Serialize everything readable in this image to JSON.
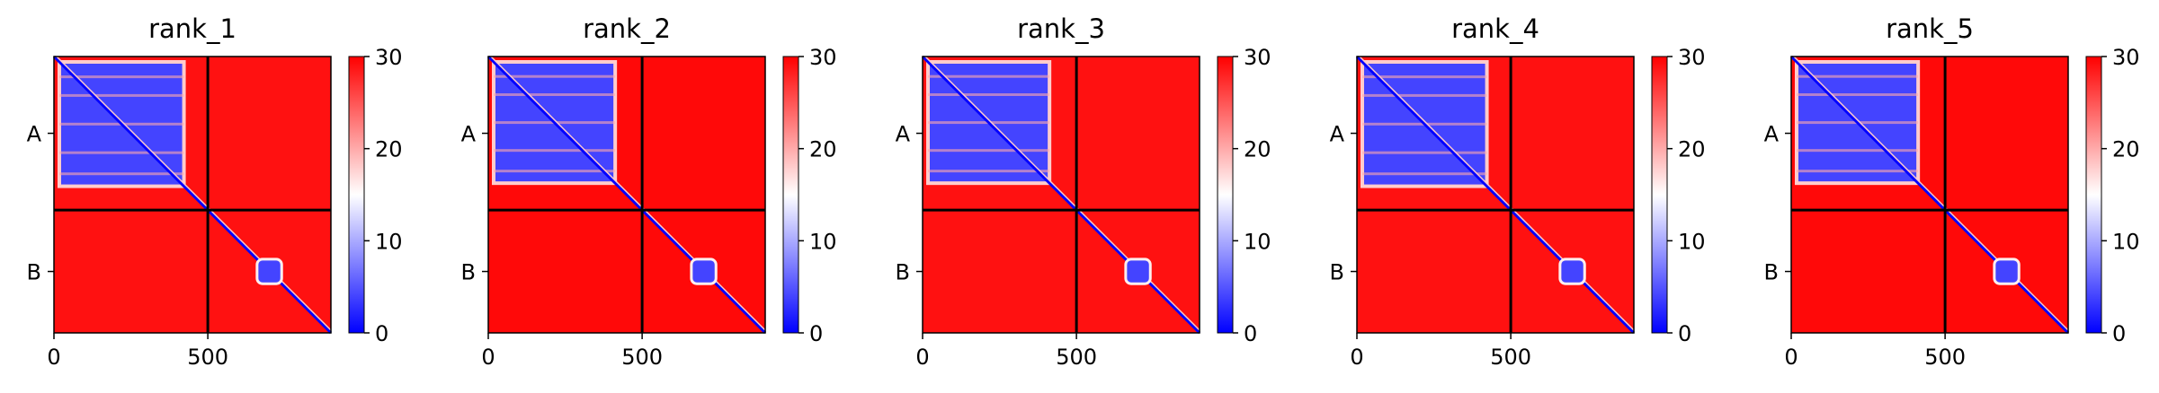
{
  "chart_data": [
    {
      "type": "heatmap",
      "title": "rank_1",
      "chains": [
        "A",
        "B"
      ],
      "chain_lengths": [
        500,
        400
      ],
      "xticks": [
        0,
        500
      ],
      "xtick_labels": [
        "0",
        "500"
      ],
      "ytick_labels": [
        "A",
        "B"
      ],
      "colorbar": {
        "min": 0,
        "max": 30,
        "ticks": [
          0,
          10,
          20,
          30
        ],
        "tick_labels": [
          "0",
          "10",
          "20",
          "30"
        ],
        "cmap": [
          "#0000ff",
          "#ffffff",
          "#ff0000"
        ]
      },
      "intra_chain_error": {
        "A": 4,
        "B": 4
      },
      "inter_chain_error": 29,
      "chainA_core_end": 440,
      "chainB_domain": [
        660,
        740
      ]
    },
    {
      "type": "heatmap",
      "title": "rank_2",
      "chains": [
        "A",
        "B"
      ],
      "chain_lengths": [
        500,
        400
      ],
      "xticks": [
        0,
        500
      ],
      "xtick_labels": [
        "0",
        "500"
      ],
      "ytick_labels": [
        "A",
        "B"
      ],
      "colorbar": {
        "min": 0,
        "max": 30,
        "ticks": [
          0,
          10,
          20,
          30
        ],
        "tick_labels": [
          "0",
          "10",
          "20",
          "30"
        ],
        "cmap": [
          "#0000ff",
          "#ffffff",
          "#ff0000"
        ]
      },
      "intra_chain_error": {
        "A": 4,
        "B": 4
      },
      "inter_chain_error": 29.5,
      "chainA_core_end": 430,
      "chainB_domain": [
        660,
        740
      ]
    },
    {
      "type": "heatmap",
      "title": "rank_3",
      "chains": [
        "A",
        "B"
      ],
      "chain_lengths": [
        500,
        400
      ],
      "xticks": [
        0,
        500
      ],
      "xtick_labels": [
        "0",
        "500"
      ],
      "ytick_labels": [
        "A",
        "B"
      ],
      "colorbar": {
        "min": 0,
        "max": 30,
        "ticks": [
          0,
          10,
          20,
          30
        ],
        "tick_labels": [
          "0",
          "10",
          "20",
          "30"
        ],
        "cmap": [
          "#0000ff",
          "#ffffff",
          "#ff0000"
        ]
      },
      "intra_chain_error": {
        "A": 4,
        "B": 4
      },
      "inter_chain_error": 29,
      "chainA_core_end": 430,
      "chainB_domain": [
        660,
        740
      ]
    },
    {
      "type": "heatmap",
      "title": "rank_4",
      "chains": [
        "A",
        "B"
      ],
      "chain_lengths": [
        500,
        400
      ],
      "xticks": [
        0,
        500
      ],
      "xtick_labels": [
        "0",
        "500"
      ],
      "ytick_labels": [
        "A",
        "B"
      ],
      "colorbar": {
        "min": 0,
        "max": 30,
        "ticks": [
          0,
          10,
          20,
          30
        ],
        "tick_labels": [
          "0",
          "10",
          "20",
          "30"
        ],
        "cmap": [
          "#0000ff",
          "#ffffff",
          "#ff0000"
        ]
      },
      "intra_chain_error": {
        "A": 4,
        "B": 4
      },
      "inter_chain_error": 29,
      "chainA_core_end": 440,
      "chainB_domain": [
        660,
        740
      ]
    },
    {
      "type": "heatmap",
      "title": "rank_5",
      "chains": [
        "A",
        "B"
      ],
      "chain_lengths": [
        500,
        400
      ],
      "xticks": [
        0,
        500
      ],
      "xtick_labels": [
        "0",
        "500"
      ],
      "ytick_labels": [
        "A",
        "B"
      ],
      "colorbar": {
        "min": 0,
        "max": 30,
        "ticks": [
          0,
          10,
          20,
          30
        ],
        "tick_labels": [
          "0",
          "10",
          "20",
          "30"
        ],
        "cmap": [
          "#0000ff",
          "#ffffff",
          "#ff0000"
        ]
      },
      "intra_chain_error": {
        "A": 4,
        "B": 4
      },
      "inter_chain_error": 29.5,
      "chainA_core_end": 430,
      "chainB_domain": [
        660,
        740
      ]
    }
  ]
}
